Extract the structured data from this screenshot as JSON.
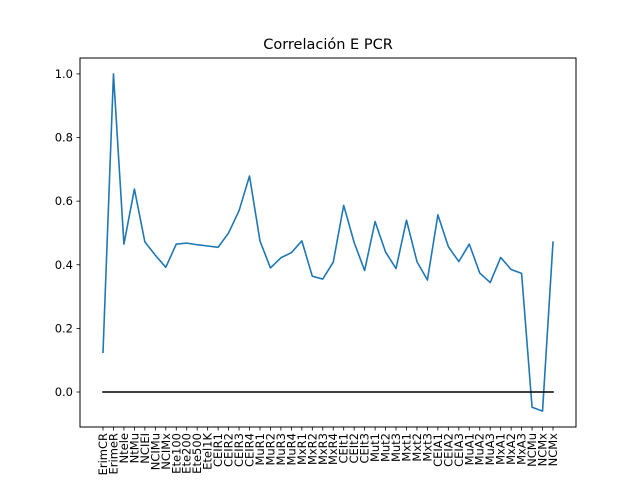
{
  "chart_data": {
    "type": "line",
    "title": "Correlación E PCR",
    "xlabel": "",
    "ylabel": "",
    "ylim": [
      -0.11,
      1.05
    ],
    "yticks": [
      "0.0",
      "0.2",
      "0.4",
      "0.6",
      "0.8",
      "1.0"
    ],
    "grid": false,
    "categories": [
      "ErimCR",
      "ErimeR",
      "Ntele",
      "NtMu",
      "NCIEI",
      "NCIMu",
      "NCIMx",
      "Ete100",
      "Ete200",
      "Ete500",
      "Etel1K",
      "CEIR1",
      "CEIR2",
      "CEIR3",
      "CEIR4",
      "MuR1",
      "MuR2",
      "MuR3",
      "MuR4",
      "MxR1",
      "MxR2",
      "MxR3",
      "MxR4",
      "CEIt1",
      "CEIt2",
      "CEIt3",
      "Mut1",
      "Mut2",
      "Mut3",
      "Mxt1",
      "Mxt2",
      "Mxt3",
      "CEIA1",
      "CEIA2",
      "CEIA3",
      "MuA1",
      "MuA2",
      "MuA3",
      "MxA1",
      "MxA2",
      "MxA3",
      "NCMu",
      "NCMx",
      "NCMx"
    ],
    "series": [
      {
        "color": "#1f77b4",
        "values": [
          0.125,
          1.0,
          0.465,
          0.638,
          0.472,
          0.43,
          0.392,
          0.465,
          0.468,
          0.463,
          0.459,
          0.455,
          0.5,
          0.57,
          0.679,
          0.475,
          0.39,
          0.422,
          0.438,
          0.475,
          0.364,
          0.355,
          0.408,
          0.587,
          0.47,
          0.382,
          0.536,
          0.44,
          0.388,
          0.54,
          0.41,
          0.352,
          0.557,
          0.457,
          0.41,
          0.465,
          0.374,
          0.344,
          0.423,
          0.385,
          0.373,
          -0.048,
          -0.06,
          0.471
        ]
      },
      {
        "color": "#000000",
        "values": [
          0,
          0,
          0,
          0,
          0,
          0,
          0,
          0,
          0,
          0,
          0,
          0,
          0,
          0,
          0,
          0,
          0,
          0,
          0,
          0,
          0,
          0,
          0,
          0,
          0,
          0,
          0,
          0,
          0,
          0,
          0,
          0,
          0,
          0,
          0,
          0,
          0,
          0,
          0,
          0,
          0,
          0,
          0,
          0
        ]
      }
    ]
  }
}
